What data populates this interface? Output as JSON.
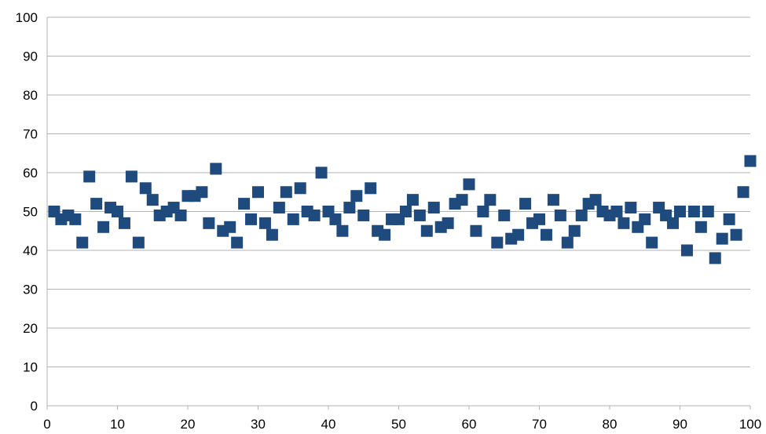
{
  "chart_data": {
    "type": "scatter",
    "title": "",
    "xlabel": "",
    "ylabel": "",
    "xlim": [
      0,
      100
    ],
    "ylim": [
      0,
      100
    ],
    "x_ticks": [
      "0",
      "10",
      "20",
      "30",
      "40",
      "50",
      "60",
      "70",
      "80",
      "90",
      "100"
    ],
    "y_ticks": [
      "0",
      "10",
      "20",
      "30",
      "40",
      "50",
      "60",
      "70",
      "80",
      "90",
      "100"
    ],
    "grid": "horizontal",
    "legend": "none",
    "marker": "square",
    "marker_color": "#1f4a7e",
    "series": [
      {
        "x": [
          1,
          2,
          3,
          4,
          5,
          6,
          7,
          8,
          9,
          10,
          11,
          12,
          13,
          14,
          15,
          16,
          17,
          18,
          19,
          20,
          21,
          22,
          23,
          24,
          25,
          26,
          27,
          28,
          29,
          30,
          31,
          32,
          33,
          34,
          35,
          36,
          37,
          38,
          39,
          40,
          41,
          42,
          43,
          44,
          45,
          46,
          47,
          48,
          49,
          50,
          51,
          52,
          53,
          54,
          55,
          56,
          57,
          58,
          59,
          60,
          61,
          62,
          63,
          64,
          65,
          66,
          67,
          68,
          69,
          70,
          71,
          72,
          73,
          74,
          75,
          76,
          77,
          78,
          79,
          80,
          81,
          82,
          83,
          84,
          85,
          86,
          87,
          88,
          89,
          90,
          91,
          92,
          93,
          94,
          95,
          96,
          97,
          98,
          99,
          100
        ],
        "y": [
          50,
          48,
          49,
          48,
          42,
          59,
          52,
          46,
          51,
          50,
          47,
          59,
          42,
          56,
          53,
          49,
          50,
          51,
          49,
          54,
          54,
          55,
          47,
          61,
          45,
          46,
          42,
          52,
          48,
          55,
          47,
          44,
          51,
          55,
          48,
          56,
          50,
          49,
          60,
          50,
          48,
          45,
          51,
          54,
          49,
          56,
          45,
          44,
          48,
          48,
          50,
          53,
          49,
          45,
          51,
          46,
          47,
          52,
          53,
          57,
          45,
          50,
          53,
          42,
          49,
          43,
          44,
          52,
          47,
          48,
          44,
          53,
          49,
          42,
          45,
          49,
          52,
          53,
          50,
          49,
          50,
          47,
          51,
          46,
          48,
          42,
          51,
          49,
          47,
          50,
          40,
          50,
          46,
          50,
          38,
          43,
          48,
          44,
          55,
          63
        ]
      }
    ]
  }
}
